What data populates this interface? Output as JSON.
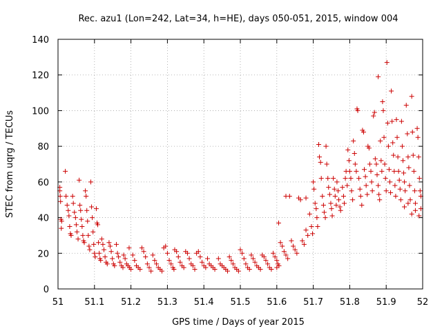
{
  "chart_data": {
    "type": "scatter",
    "title": "Rec. azu1 (Lon=242, Lat=34, h=HE), days 050-051, 2015, window 004",
    "xlabel": "GPS time / Days of year 2015",
    "ylabel": "STEC from uqrg / TECUs",
    "xlim": [
      51,
      52
    ],
    "ylim": [
      0,
      140
    ],
    "xticks": [
      51,
      51.1,
      51.2,
      51.3,
      51.4,
      51.5,
      51.6,
      51.7,
      51.8,
      51.9,
      52
    ],
    "xtick_labels": [
      "51",
      "51.1",
      "51.2",
      "51.3",
      "51.4",
      "51.5",
      "51.6",
      "51.7",
      "51.8",
      "51.9",
      "52"
    ],
    "yticks": [
      0,
      20,
      40,
      60,
      80,
      100,
      120,
      140
    ],
    "ytick_labels": [
      "0",
      "20",
      "40",
      "60",
      "80",
      "100",
      "120",
      "140"
    ],
    "grid": true,
    "marker": "+",
    "color": "#cc0000",
    "series": [
      {
        "name": "STEC",
        "points": [
          [
            51.005,
            57
          ],
          [
            51.005,
            55
          ],
          [
            51.006,
            52
          ],
          [
            51.007,
            49
          ],
          [
            51.008,
            39
          ],
          [
            51.009,
            34
          ],
          [
            51.01,
            38
          ],
          [
            51.02,
            66
          ],
          [
            51.022,
            52
          ],
          [
            51.025,
            47
          ],
          [
            51.028,
            44
          ],
          [
            51.03,
            41
          ],
          [
            51.032,
            35
          ],
          [
            51.034,
            31
          ],
          [
            51.036,
            30
          ],
          [
            51.04,
            52
          ],
          [
            51.042,
            48
          ],
          [
            51.045,
            43
          ],
          [
            51.048,
            40
          ],
          [
            51.05,
            36
          ],
          [
            51.052,
            32
          ],
          [
            51.055,
            28
          ],
          [
            51.058,
            61
          ],
          [
            51.06,
            47
          ],
          [
            51.062,
            44
          ],
          [
            51.064,
            39
          ],
          [
            51.066,
            35
          ],
          [
            51.068,
            30
          ],
          [
            51.07,
            27
          ],
          [
            51.072,
            26
          ],
          [
            51.075,
            55
          ],
          [
            51.077,
            52
          ],
          [
            51.079,
            44
          ],
          [
            51.081,
            38
          ],
          [
            51.083,
            30
          ],
          [
            51.085,
            24
          ],
          [
            51.087,
            22
          ],
          [
            51.09,
            60
          ],
          [
            51.092,
            46
          ],
          [
            51.094,
            40
          ],
          [
            51.096,
            32
          ],
          [
            51.098,
            25
          ],
          [
            51.1,
            20
          ],
          [
            51.102,
            18
          ],
          [
            51.105,
            45
          ],
          [
            51.107,
            37
          ],
          [
            51.109,
            36
          ],
          [
            51.111,
            26
          ],
          [
            51.113,
            20
          ],
          [
            51.115,
            17
          ],
          [
            51.117,
            16
          ],
          [
            51.12,
            28
          ],
          [
            51.123,
            25
          ],
          [
            51.126,
            22
          ],
          [
            51.129,
            18
          ],
          [
            51.132,
            15
          ],
          [
            51.135,
            14
          ],
          [
            51.14,
            26
          ],
          [
            51.143,
            24
          ],
          [
            51.146,
            21
          ],
          [
            51.149,
            17
          ],
          [
            51.152,
            14
          ],
          [
            51.155,
            13
          ],
          [
            51.16,
            25
          ],
          [
            51.163,
            20
          ],
          [
            51.166,
            18
          ],
          [
            51.17,
            15
          ],
          [
            51.174,
            13
          ],
          [
            51.178,
            12
          ],
          [
            51.18,
            19
          ],
          [
            51.184,
            17
          ],
          [
            51.188,
            14
          ],
          [
            51.192,
            13
          ],
          [
            51.196,
            12
          ],
          [
            51.2,
            11
          ],
          [
            51.195,
            23
          ],
          [
            51.205,
            19
          ],
          [
            51.21,
            16
          ],
          [
            51.215,
            13
          ],
          [
            51.22,
            12
          ],
          [
            51.225,
            11
          ],
          [
            51.23,
            23
          ],
          [
            51.235,
            21
          ],
          [
            51.24,
            18
          ],
          [
            51.245,
            14
          ],
          [
            51.25,
            12
          ],
          [
            51.255,
            10
          ],
          [
            51.26,
            19
          ],
          [
            51.265,
            16
          ],
          [
            51.27,
            14
          ],
          [
            51.275,
            12
          ],
          [
            51.28,
            11
          ],
          [
            51.285,
            10
          ],
          [
            51.29,
            23
          ],
          [
            51.295,
            24
          ],
          [
            51.3,
            20
          ],
          [
            51.305,
            16
          ],
          [
            51.31,
            14
          ],
          [
            51.315,
            12
          ],
          [
            51.318,
            11
          ],
          [
            51.32,
            22
          ],
          [
            51.325,
            21
          ],
          [
            51.33,
            18
          ],
          [
            51.335,
            15
          ],
          [
            51.34,
            13
          ],
          [
            51.345,
            12
          ],
          [
            51.35,
            21
          ],
          [
            51.355,
            20
          ],
          [
            51.36,
            17
          ],
          [
            51.365,
            14
          ],
          [
            51.37,
            13
          ],
          [
            51.375,
            11
          ],
          [
            51.38,
            20
          ],
          [
            51.385,
            21
          ],
          [
            51.39,
            18
          ],
          [
            51.395,
            15
          ],
          [
            51.4,
            13
          ],
          [
            51.405,
            12
          ],
          [
            51.41,
            17
          ],
          [
            51.415,
            14
          ],
          [
            51.42,
            13
          ],
          [
            51.425,
            12
          ],
          [
            51.43,
            11
          ],
          [
            51.44,
            17
          ],
          [
            51.445,
            14
          ],
          [
            51.45,
            13
          ],
          [
            51.455,
            12
          ],
          [
            51.46,
            11
          ],
          [
            51.465,
            10
          ],
          [
            51.47,
            18
          ],
          [
            51.475,
            16
          ],
          [
            51.48,
            14
          ],
          [
            51.485,
            12
          ],
          [
            51.49,
            11
          ],
          [
            51.495,
            10
          ],
          [
            51.5,
            22
          ],
          [
            51.505,
            20
          ],
          [
            51.51,
            17
          ],
          [
            51.515,
            14
          ],
          [
            51.52,
            12
          ],
          [
            51.525,
            11
          ],
          [
            51.53,
            19
          ],
          [
            51.535,
            17
          ],
          [
            51.54,
            15
          ],
          [
            51.545,
            13
          ],
          [
            51.55,
            12
          ],
          [
            51.555,
            11
          ],
          [
            51.56,
            19
          ],
          [
            51.565,
            18
          ],
          [
            51.57,
            16
          ],
          [
            51.575,
            14
          ],
          [
            51.58,
            12
          ],
          [
            51.585,
            11
          ],
          [
            51.59,
            20
          ],
          [
            51.595,
            18
          ],
          [
            51.6,
            16
          ],
          [
            51.603,
            14
          ],
          [
            51.606,
            13
          ],
          [
            51.6,
            12
          ],
          [
            51.605,
            37
          ],
          [
            51.61,
            26
          ],
          [
            51.615,
            24
          ],
          [
            51.62,
            21
          ],
          [
            51.625,
            19
          ],
          [
            51.63,
            17
          ],
          [
            51.625,
            52
          ],
          [
            51.635,
            52
          ],
          [
            51.64,
            27
          ],
          [
            51.645,
            24
          ],
          [
            51.65,
            22
          ],
          [
            51.655,
            20
          ],
          [
            51.66,
            51
          ],
          [
            51.665,
            50
          ],
          [
            51.67,
            27
          ],
          [
            51.675,
            25
          ],
          [
            51.68,
            33
          ],
          [
            51.685,
            30
          ],
          [
            51.68,
            51
          ],
          [
            51.69,
            42
          ],
          [
            51.695,
            35
          ],
          [
            51.698,
            31
          ],
          [
            51.7,
            60
          ],
          [
            51.702,
            56
          ],
          [
            51.705,
            48
          ],
          [
            51.708,
            45
          ],
          [
            51.71,
            40
          ],
          [
            51.712,
            35
          ],
          [
            51.715,
            81
          ],
          [
            51.717,
            74
          ],
          [
            51.72,
            71
          ],
          [
            51.722,
            62
          ],
          [
            51.725,
            52
          ],
          [
            51.728,
            47
          ],
          [
            51.73,
            43
          ],
          [
            51.733,
            40
          ],
          [
            51.735,
            80
          ],
          [
            51.737,
            70
          ],
          [
            51.74,
            62
          ],
          [
            51.742,
            57
          ],
          [
            51.745,
            53
          ],
          [
            51.748,
            48
          ],
          [
            51.75,
            45
          ],
          [
            51.752,
            41
          ],
          [
            51.755,
            62
          ],
          [
            51.758,
            56
          ],
          [
            51.76,
            52
          ],
          [
            51.763,
            47
          ],
          [
            51.765,
            60
          ],
          [
            51.768,
            55
          ],
          [
            51.77,
            50
          ],
          [
            51.773,
            46
          ],
          [
            51.775,
            44
          ],
          [
            51.78,
            57
          ],
          [
            51.783,
            52
          ],
          [
            51.785,
            48
          ],
          [
            51.788,
            62
          ],
          [
            51.79,
            66
          ],
          [
            51.793,
            58
          ],
          [
            51.795,
            78
          ],
          [
            51.798,
            72
          ],
          [
            51.8,
            66
          ],
          [
            51.803,
            62
          ],
          [
            51.805,
            55
          ],
          [
            51.808,
            50
          ],
          [
            51.81,
            83
          ],
          [
            51.813,
            76
          ],
          [
            51.815,
            70
          ],
          [
            51.818,
            66
          ],
          [
            51.82,
            101
          ],
          [
            51.822,
            100
          ],
          [
            51.825,
            62
          ],
          [
            51.828,
            56
          ],
          [
            51.83,
            52
          ],
          [
            51.833,
            47
          ],
          [
            51.835,
            89
          ],
          [
            51.838,
            88
          ],
          [
            51.84,
            67
          ],
          [
            51.843,
            63
          ],
          [
            51.845,
            58
          ],
          [
            51.848,
            53
          ],
          [
            51.85,
            80
          ],
          [
            51.853,
            79
          ],
          [
            51.855,
            70
          ],
          [
            51.858,
            66
          ],
          [
            51.86,
            60
          ],
          [
            51.862,
            55
          ],
          [
            51.865,
            97
          ],
          [
            51.868,
            99
          ],
          [
            51.87,
            73
          ],
          [
            51.873,
            70
          ],
          [
            51.875,
            64
          ],
          [
            51.878,
            58
          ],
          [
            51.88,
            53
          ],
          [
            51.882,
            50
          ],
          [
            51.878,
            119
          ],
          [
            51.884,
            83
          ],
          [
            51.886,
            72
          ],
          [
            51.888,
            66
          ],
          [
            51.89,
            105
          ],
          [
            51.892,
            100
          ],
          [
            51.894,
            85
          ],
          [
            51.896,
            70
          ],
          [
            51.898,
            62
          ],
          [
            51.9,
            55
          ],
          [
            51.902,
            127
          ],
          [
            51.904,
            93
          ],
          [
            51.906,
            80
          ],
          [
            51.908,
            67
          ],
          [
            51.91,
            60
          ],
          [
            51.912,
            54
          ],
          [
            51.914,
            111
          ],
          [
            51.916,
            94
          ],
          [
            51.918,
            82
          ],
          [
            51.92,
            75
          ],
          [
            51.922,
            66
          ],
          [
            51.924,
            58
          ],
          [
            51.926,
            52
          ],
          [
            51.928,
            95
          ],
          [
            51.93,
            85
          ],
          [
            51.932,
            74
          ],
          [
            51.934,
            66
          ],
          [
            51.936,
            61
          ],
          [
            51.938,
            56
          ],
          [
            51.94,
            50
          ],
          [
            51.942,
            94
          ],
          [
            51.944,
            80
          ],
          [
            51.946,
            72
          ],
          [
            51.948,
            65
          ],
          [
            51.95,
            60
          ],
          [
            51.952,
            55
          ],
          [
            51.955,
            103
          ],
          [
            51.958,
            87
          ],
          [
            51.96,
            74
          ],
          [
            51.962,
            68
          ],
          [
            51.964,
            58
          ],
          [
            51.966,
            50
          ],
          [
            51.97,
            108
          ],
          [
            51.972,
            88
          ],
          [
            51.974,
            75
          ],
          [
            51.976,
            66
          ],
          [
            51.978,
            55
          ],
          [
            51.98,
            48
          ],
          [
            51.985,
            90
          ],
          [
            51.987,
            85
          ],
          [
            51.989,
            74
          ],
          [
            51.991,
            62
          ],
          [
            51.993,
            55
          ],
          [
            51.995,
            45
          ],
          [
            51.97,
            42
          ],
          [
            51.98,
            44
          ],
          [
            51.99,
            41
          ],
          [
            51.995,
            52
          ],
          [
            51.96,
            48
          ],
          [
            51.95,
            46
          ]
        ]
      }
    ]
  }
}
